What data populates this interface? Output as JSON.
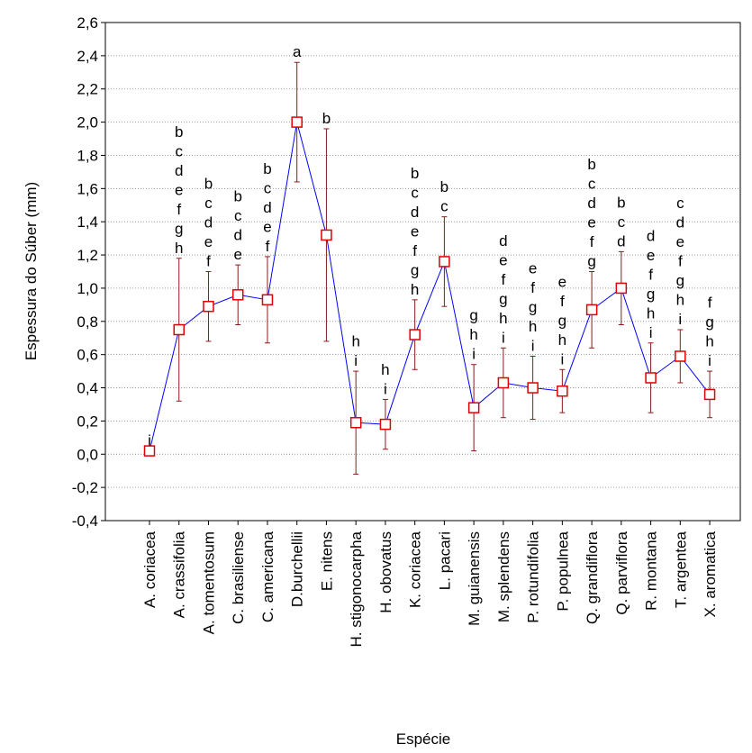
{
  "chart_data": {
    "type": "line",
    "x_label": "Espécie",
    "y_label": "Espessura do Súber (mm)",
    "categories": [
      "A. coriacea",
      "A. crassifolia",
      "A. tomentosum",
      "C. brasiliense",
      "C. americana",
      "D.burchellii",
      "E. nitens",
      "H. stigonocarpha",
      "H. obovatus",
      "K. coriacea",
      "L. pacari",
      "M. guianensis",
      "M. splendens",
      "P. rotundifolia",
      "P. populnea",
      "Q. grandiflora",
      "Q. parviflora",
      "R. montana",
      "T. argentea",
      "X. aromatica"
    ],
    "series": [
      {
        "color": "#0000ff",
        "marker_color": "#e00000",
        "error_color": "#8b1a1a",
        "values": [
          0.02,
          0.75,
          0.89,
          0.96,
          0.93,
          2.0,
          1.32,
          0.19,
          0.18,
          0.72,
          1.16,
          0.28,
          0.43,
          0.4,
          0.38,
          0.87,
          1.0,
          0.46,
          0.59,
          0.36
        ],
        "errors": [
          0,
          0.43,
          0.21,
          0.18,
          0.26,
          0.36,
          0.64,
          0.31,
          0.15,
          0.21,
          0.27,
          0.26,
          0.21,
          0.19,
          0.13,
          0.23,
          0.22,
          0.21,
          0.16,
          0.14
        ]
      }
    ],
    "group_labels": [
      "i",
      "bcdefgh",
      "bcdef",
      "bcde",
      "bcdef",
      "a",
      "b",
      "hi",
      "hi",
      "bcdefgh",
      "bc",
      "ghi",
      "defghi",
      "efghi",
      "efghi",
      "bcdefg",
      "bcd",
      "defghi",
      "cdefghi",
      "fghi"
    ],
    "group_label_colors": [
      "#000000",
      "#000000",
      "#000000",
      "#000000",
      "#000000",
      "#ff0000",
      "#000000",
      "#000000",
      "#000000",
      "#000000",
      "#000000",
      "#000000",
      "#000000",
      "#000000",
      "#000000",
      "#000000",
      "#000000",
      "#000000",
      "#000000",
      "#000000"
    ],
    "ylim": [
      -0.4,
      2.6
    ],
    "yticks": [
      {
        "value": -0.4,
        "label": "-0,4"
      },
      {
        "value": -0.2,
        "label": "-0,2"
      },
      {
        "value": 0,
        "label": "0,0"
      },
      {
        "value": 0.2,
        "label": "0,2"
      },
      {
        "value": 0.4,
        "label": "0,4"
      },
      {
        "value": 0.6,
        "label": "0,6"
      },
      {
        "value": 0.8,
        "label": "0,8"
      },
      {
        "value": 1.0,
        "label": "1,0"
      },
      {
        "value": 1.2,
        "label": "1,2"
      },
      {
        "value": 1.4,
        "label": "1,4"
      },
      {
        "value": 1.6,
        "label": "1,6"
      },
      {
        "value": 1.8,
        "label": "1,8"
      },
      {
        "value": 2.0,
        "label": "2,0"
      },
      {
        "value": 2.2,
        "label": "2,2"
      },
      {
        "value": 2.4,
        "label": "2,4"
      },
      {
        "value": 2.6,
        "label": "2,6"
      }
    ],
    "grid": true
  }
}
